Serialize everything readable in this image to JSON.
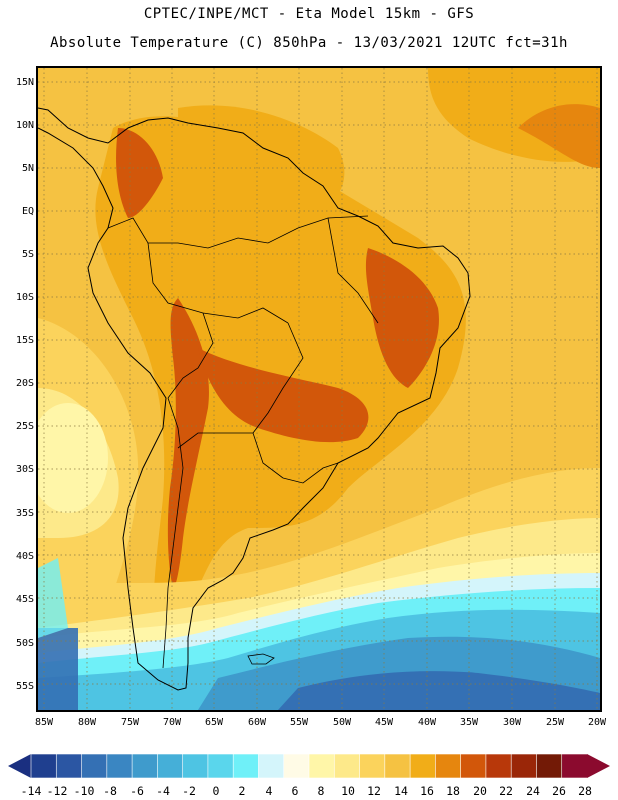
{
  "header": {
    "line1": "CPTEC/INPE/MCT -  Eta Model 15km - GFS",
    "line2": "Absolute Temperature (C) 850hPa - 13/03/2021 12UTC fct=31h"
  },
  "map": {
    "region": "South America",
    "lat_labels": [
      "15N",
      "10N",
      "5N",
      "EQ",
      "5S",
      "10S",
      "15S",
      "20S",
      "25S",
      "30S",
      "35S",
      "40S",
      "45S",
      "50S",
      "55S"
    ],
    "lon_labels": [
      "85W",
      "80W",
      "75W",
      "70W",
      "65W",
      "60W",
      "55W",
      "50W",
      "45W",
      "40W",
      "35W",
      "30W",
      "25W",
      "20W"
    ]
  },
  "colorbar": {
    "labels": [
      "-14",
      "-12",
      "-10",
      "-8",
      "-6",
      "-4",
      "-2",
      "0",
      "2",
      "4",
      "6",
      "8",
      "10",
      "12",
      "14",
      "16",
      "18",
      "20",
      "22",
      "24",
      "26",
      "28"
    ],
    "colors": [
      "#1f3f8f",
      "#2b56a3",
      "#3470b4",
      "#3a86c2",
      "#3f9bcc",
      "#45afd8",
      "#4ec4e3",
      "#5ad6ec",
      "#6ff0f8",
      "#d4f5fb",
      "#fffbe6",
      "#fff6a8",
      "#fde98a",
      "#fbd35c",
      "#f5c242",
      "#f1ad18",
      "#e6860e",
      "#d2570a",
      "#b8380a",
      "#9a2608",
      "#731a06",
      "#8b0a2e"
    ],
    "left_arrow_color": "#1a2f80",
    "right_arrow_color": "#8b0a2e"
  }
}
